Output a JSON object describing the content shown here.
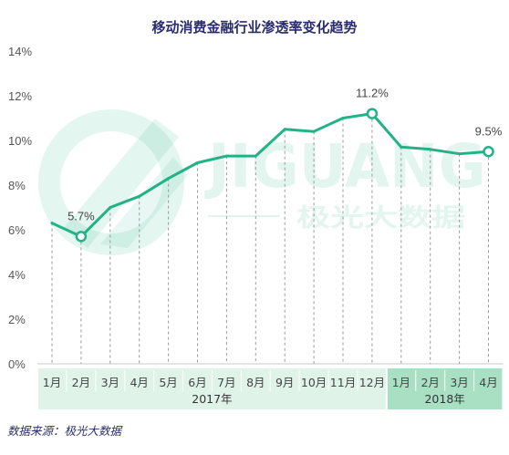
{
  "chart_data": {
    "type": "line",
    "title": "移动消费金融行业渗透率变化趋势",
    "ylim": [
      0,
      14
    ],
    "grid": false,
    "y_ticks": [
      {
        "value": 0,
        "label": "0%"
      },
      {
        "value": 2,
        "label": "2%"
      },
      {
        "value": 4,
        "label": "4%"
      },
      {
        "value": 6,
        "label": "6%"
      },
      {
        "value": 8,
        "label": "8%"
      },
      {
        "value": 10,
        "label": "10%"
      },
      {
        "value": 12,
        "label": "12%"
      },
      {
        "value": 14,
        "label": "14%"
      }
    ],
    "groups": [
      {
        "label": "2017年",
        "categories": [
          "1月",
          "2月",
          "3月",
          "4月",
          "5月",
          "6月",
          "7月",
          "8月",
          "9月",
          "10月",
          "11月",
          "12月"
        ]
      },
      {
        "label": "2018年",
        "categories": [
          "1月",
          "2月",
          "3月",
          "4月"
        ]
      }
    ],
    "series": [
      {
        "values": [
          6.3,
          5.7,
          7.0,
          7.5,
          8.3,
          9.0,
          9.3,
          9.3,
          10.5,
          10.4,
          11.0,
          11.2,
          9.7,
          9.6,
          9.4,
          9.5
        ]
      }
    ],
    "data_labels": [
      {
        "index": 1,
        "text": "5.7%"
      },
      {
        "index": 11,
        "text": "11.2%"
      },
      {
        "index": 15,
        "text": "9.5%"
      }
    ],
    "colors": {
      "line": "#21b385",
      "bands": [
        "#e0f3e9",
        "#a9e0c3"
      ],
      "axis": "#c8c8c8",
      "dash": "#9a9a9a"
    }
  },
  "source": "数据来源：极光大数据",
  "watermark": {
    "brand": "JIGUANG",
    "name": "极光大数据"
  }
}
